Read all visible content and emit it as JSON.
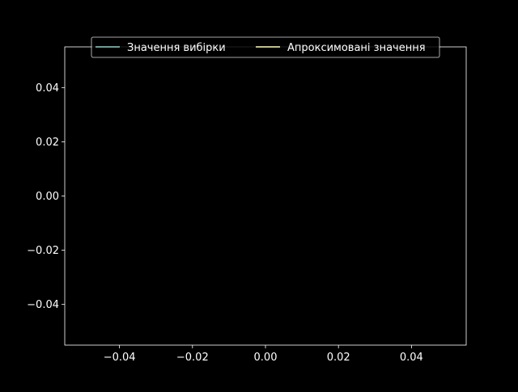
{
  "chart_data": {
    "type": "line",
    "title": "",
    "xlabel": "",
    "ylabel": "",
    "xlim": [
      -0.055,
      0.055
    ],
    "ylim": [
      -0.055,
      0.055
    ],
    "xticks": [
      -0.04,
      -0.02,
      0.0,
      0.02,
      0.04
    ],
    "xtick_labels": [
      "−0.04",
      "−0.02",
      "0.00",
      "0.02",
      "0.04"
    ],
    "yticks": [
      -0.04,
      -0.02,
      0.0,
      0.02,
      0.04
    ],
    "ytick_labels": [
      "−0.04",
      "−0.02",
      "0.00",
      "0.02",
      "0.04"
    ],
    "grid": false,
    "legend_position": "top-center",
    "background_color": "#000000",
    "axes_color": "#ffffff",
    "series": [
      {
        "name": "Значення вибірки",
        "color": "#8dd3c7",
        "x": [],
        "y": []
      },
      {
        "name": "Апроксимовані значення",
        "color": "#ffffb3",
        "x": [],
        "y": []
      }
    ]
  }
}
